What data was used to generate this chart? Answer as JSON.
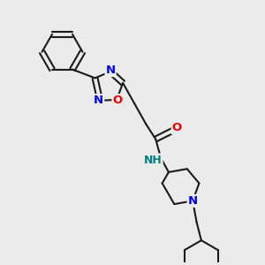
{
  "bg_color": "#ebebeb",
  "bond_color": "#1a1a1a",
  "bond_width": 1.5,
  "atom_colors": {
    "N": "#0000ee",
    "O": "#ee0000",
    "H": "#008080",
    "C": "#1a1a1a"
  },
  "font_size_atom": 9.5
}
